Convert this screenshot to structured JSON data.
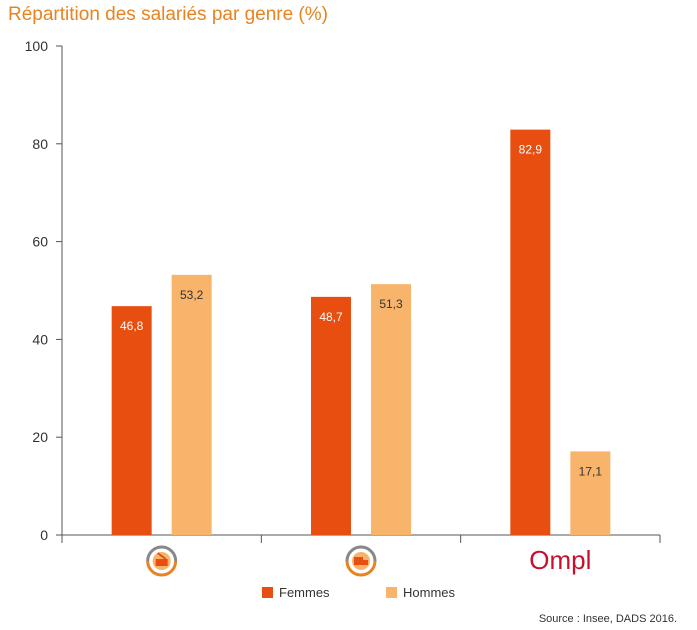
{
  "chart_data": {
    "type": "bar",
    "title": "Répartition des salariés par genre (%)",
    "categories": [
      "",
      "",
      "Ompl"
    ],
    "category_icons": [
      "sector-icon-cleaning-cart",
      "sector-icon-waste-truck",
      "ompl-logo"
    ],
    "series": [
      {
        "name": "Femmes",
        "values": [
          46.8,
          48.7,
          82.9
        ],
        "labels": [
          "46,8",
          "48,7",
          "82,9"
        ],
        "color": "#e84e0f",
        "label_color": "#ffffff"
      },
      {
        "name": "Hommes",
        "values": [
          53.2,
          51.3,
          17.1
        ],
        "labels": [
          "53,2",
          "51,3",
          "17,1"
        ],
        "color": "#f7b46a",
        "label_color": "#333333"
      }
    ],
    "ylim": [
      0,
      100
    ],
    "yticks": [
      0,
      20,
      40,
      60,
      80,
      100
    ],
    "ytick_labels": [
      "0",
      "20",
      "40",
      "60",
      "80",
      "100"
    ],
    "grid": false,
    "legend_position": "bottom-center",
    "source": "Source : Insee, DADS 2016.",
    "colors": {
      "title": "#e8831f",
      "axis": "#555555",
      "ompl_logo": "#c8102e",
      "icon_gray": "#888888"
    }
  }
}
